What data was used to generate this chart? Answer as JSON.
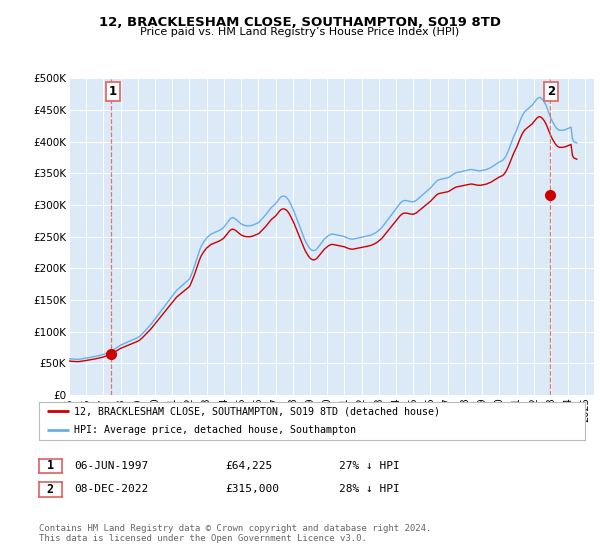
{
  "title": "12, BRACKLESHAM CLOSE, SOUTHAMPTON, SO19 8TD",
  "subtitle": "Price paid vs. HM Land Registry’s House Price Index (HPI)",
  "plot_bg_color": "#dce9f7",
  "ylim": [
    0,
    500000
  ],
  "yticks": [
    0,
    50000,
    100000,
    150000,
    200000,
    250000,
    300000,
    350000,
    400000,
    450000,
    500000
  ],
  "ytick_labels": [
    "£0",
    "£50K",
    "£100K",
    "£150K",
    "£200K",
    "£250K",
    "£300K",
    "£350K",
    "£400K",
    "£450K",
    "£500K"
  ],
  "sale1_date_num": 1997.43,
  "sale1_price": 64225,
  "sale2_date_num": 2022.93,
  "sale2_price": 315000,
  "hpi_color": "#6aaee8",
  "sale_color": "#cc0000",
  "vline_color": "#e06060",
  "legend_entry1": "12, BRACKLESHAM CLOSE, SOUTHAMPTON, SO19 8TD (detached house)",
  "legend_entry2": "HPI: Average price, detached house, Southampton",
  "table_row1": [
    "1",
    "06-JUN-1997",
    "£64,225",
    "27% ↓ HPI"
  ],
  "table_row2": [
    "2",
    "08-DEC-2022",
    "£315,000",
    "28% ↓ HPI"
  ],
  "footer": "Contains HM Land Registry data © Crown copyright and database right 2024.\nThis data is licensed under the Open Government Licence v3.0.",
  "hpi_data": [
    [
      1995.0,
      57000
    ],
    [
      1995.083,
      56800
    ],
    [
      1995.167,
      56500
    ],
    [
      1995.25,
      56300
    ],
    [
      1995.333,
      56200
    ],
    [
      1995.417,
      56100
    ],
    [
      1995.5,
      56000
    ],
    [
      1995.583,
      56200
    ],
    [
      1995.667,
      56500
    ],
    [
      1995.75,
      56800
    ],
    [
      1995.833,
      57200
    ],
    [
      1995.917,
      57600
    ],
    [
      1996.0,
      58000
    ],
    [
      1996.083,
      58400
    ],
    [
      1996.167,
      58800
    ],
    [
      1996.25,
      59200
    ],
    [
      1996.333,
      59600
    ],
    [
      1996.417,
      60000
    ],
    [
      1996.5,
      60500
    ],
    [
      1996.583,
      61000
    ],
    [
      1996.667,
      61500
    ],
    [
      1996.75,
      62000
    ],
    [
      1996.833,
      62500
    ],
    [
      1996.917,
      63200
    ],
    [
      1997.0,
      64000
    ],
    [
      1997.083,
      64800
    ],
    [
      1997.167,
      65600
    ],
    [
      1997.25,
      66500
    ],
    [
      1997.333,
      67500
    ],
    [
      1997.417,
      68500
    ],
    [
      1997.5,
      69500
    ],
    [
      1997.583,
      71000
    ],
    [
      1997.667,
      72500
    ],
    [
      1997.75,
      74000
    ],
    [
      1997.833,
      75500
    ],
    [
      1997.917,
      77000
    ],
    [
      1998.0,
      78500
    ],
    [
      1998.083,
      79500
    ],
    [
      1998.167,
      80500
    ],
    [
      1998.25,
      81500
    ],
    [
      1998.333,
      82500
    ],
    [
      1998.417,
      83500
    ],
    [
      1998.5,
      84500
    ],
    [
      1998.583,
      85500
    ],
    [
      1998.667,
      86500
    ],
    [
      1998.75,
      87500
    ],
    [
      1998.833,
      88500
    ],
    [
      1998.917,
      89500
    ],
    [
      1999.0,
      90500
    ],
    [
      1999.083,
      92000
    ],
    [
      1999.167,
      94000
    ],
    [
      1999.25,
      96000
    ],
    [
      1999.333,
      98500
    ],
    [
      1999.417,
      101000
    ],
    [
      1999.5,
      103500
    ],
    [
      1999.583,
      106000
    ],
    [
      1999.667,
      108500
    ],
    [
      1999.75,
      111000
    ],
    [
      1999.833,
      114000
    ],
    [
      1999.917,
      117000
    ],
    [
      2000.0,
      120000
    ],
    [
      2000.083,
      123000
    ],
    [
      2000.167,
      126000
    ],
    [
      2000.25,
      129000
    ],
    [
      2000.333,
      132000
    ],
    [
      2000.417,
      135000
    ],
    [
      2000.5,
      138000
    ],
    [
      2000.583,
      141000
    ],
    [
      2000.667,
      144000
    ],
    [
      2000.75,
      147000
    ],
    [
      2000.833,
      150000
    ],
    [
      2000.917,
      153000
    ],
    [
      2001.0,
      156000
    ],
    [
      2001.083,
      159000
    ],
    [
      2001.167,
      162000
    ],
    [
      2001.25,
      165000
    ],
    [
      2001.333,
      167000
    ],
    [
      2001.417,
      169000
    ],
    [
      2001.5,
      171000
    ],
    [
      2001.583,
      173000
    ],
    [
      2001.667,
      175000
    ],
    [
      2001.75,
      177000
    ],
    [
      2001.833,
      179000
    ],
    [
      2001.917,
      181000
    ],
    [
      2002.0,
      183000
    ],
    [
      2002.083,
      188000
    ],
    [
      2002.167,
      194000
    ],
    [
      2002.25,
      200000
    ],
    [
      2002.333,
      207000
    ],
    [
      2002.417,
      214000
    ],
    [
      2002.5,
      221000
    ],
    [
      2002.583,
      228000
    ],
    [
      2002.667,
      234000
    ],
    [
      2002.75,
      238000
    ],
    [
      2002.833,
      242000
    ],
    [
      2002.917,
      245000
    ],
    [
      2003.0,
      248000
    ],
    [
      2003.083,
      250000
    ],
    [
      2003.167,
      252000
    ],
    [
      2003.25,
      254000
    ],
    [
      2003.333,
      255000
    ],
    [
      2003.417,
      256000
    ],
    [
      2003.5,
      257000
    ],
    [
      2003.583,
      258000
    ],
    [
      2003.667,
      259000
    ],
    [
      2003.75,
      260000
    ],
    [
      2003.833,
      261500
    ],
    [
      2003.917,
      263000
    ],
    [
      2004.0,
      265000
    ],
    [
      2004.083,
      268000
    ],
    [
      2004.167,
      271000
    ],
    [
      2004.25,
      274000
    ],
    [
      2004.333,
      277000
    ],
    [
      2004.417,
      279000
    ],
    [
      2004.5,
      280000
    ],
    [
      2004.583,
      279000
    ],
    [
      2004.667,
      278000
    ],
    [
      2004.75,
      276000
    ],
    [
      2004.833,
      274000
    ],
    [
      2004.917,
      272000
    ],
    [
      2005.0,
      270000
    ],
    [
      2005.083,
      269000
    ],
    [
      2005.167,
      268000
    ],
    [
      2005.25,
      267500
    ],
    [
      2005.333,
      267000
    ],
    [
      2005.417,
      267000
    ],
    [
      2005.5,
      267000
    ],
    [
      2005.583,
      267500
    ],
    [
      2005.667,
      268000
    ],
    [
      2005.75,
      269000
    ],
    [
      2005.833,
      270000
    ],
    [
      2005.917,
      271000
    ],
    [
      2006.0,
      272000
    ],
    [
      2006.083,
      274000
    ],
    [
      2006.167,
      276500
    ],
    [
      2006.25,
      279000
    ],
    [
      2006.333,
      281500
    ],
    [
      2006.417,
      284000
    ],
    [
      2006.5,
      287000
    ],
    [
      2006.583,
      290000
    ],
    [
      2006.667,
      293000
    ],
    [
      2006.75,
      296000
    ],
    [
      2006.833,
      298000
    ],
    [
      2006.917,
      300000
    ],
    [
      2007.0,
      302000
    ],
    [
      2007.083,
      305000
    ],
    [
      2007.167,
      308000
    ],
    [
      2007.25,
      311000
    ],
    [
      2007.333,
      313000
    ],
    [
      2007.417,
      314000
    ],
    [
      2007.5,
      314000
    ],
    [
      2007.583,
      313000
    ],
    [
      2007.667,
      311000
    ],
    [
      2007.75,
      308000
    ],
    [
      2007.833,
      304000
    ],
    [
      2007.917,
      299000
    ],
    [
      2008.0,
      294000
    ],
    [
      2008.083,
      289000
    ],
    [
      2008.167,
      283000
    ],
    [
      2008.25,
      277000
    ],
    [
      2008.333,
      271000
    ],
    [
      2008.417,
      265000
    ],
    [
      2008.5,
      259000
    ],
    [
      2008.583,
      253000
    ],
    [
      2008.667,
      247000
    ],
    [
      2008.75,
      242000
    ],
    [
      2008.833,
      238000
    ],
    [
      2008.917,
      234000
    ],
    [
      2009.0,
      231000
    ],
    [
      2009.083,
      229000
    ],
    [
      2009.167,
      228000
    ],
    [
      2009.25,
      228000
    ],
    [
      2009.333,
      229000
    ],
    [
      2009.417,
      231000
    ],
    [
      2009.5,
      234000
    ],
    [
      2009.583,
      237000
    ],
    [
      2009.667,
      240000
    ],
    [
      2009.75,
      243000
    ],
    [
      2009.833,
      246000
    ],
    [
      2009.917,
      248000
    ],
    [
      2010.0,
      250000
    ],
    [
      2010.083,
      252000
    ],
    [
      2010.167,
      253000
    ],
    [
      2010.25,
      254000
    ],
    [
      2010.333,
      254000
    ],
    [
      2010.417,
      253500
    ],
    [
      2010.5,
      253000
    ],
    [
      2010.583,
      252500
    ],
    [
      2010.667,
      252000
    ],
    [
      2010.75,
      251500
    ],
    [
      2010.833,
      251000
    ],
    [
      2010.917,
      250500
    ],
    [
      2011.0,
      250000
    ],
    [
      2011.083,
      249000
    ],
    [
      2011.167,
      248000
    ],
    [
      2011.25,
      247000
    ],
    [
      2011.333,
      246500
    ],
    [
      2011.417,
      246000
    ],
    [
      2011.5,
      246000
    ],
    [
      2011.583,
      246500
    ],
    [
      2011.667,
      247000
    ],
    [
      2011.75,
      247500
    ],
    [
      2011.833,
      248000
    ],
    [
      2011.917,
      248500
    ],
    [
      2012.0,
      249000
    ],
    [
      2012.083,
      249500
    ],
    [
      2012.167,
      250000
    ],
    [
      2012.25,
      250500
    ],
    [
      2012.333,
      251000
    ],
    [
      2012.417,
      251500
    ],
    [
      2012.5,
      252000
    ],
    [
      2012.583,
      253000
    ],
    [
      2012.667,
      254000
    ],
    [
      2012.75,
      255000
    ],
    [
      2012.833,
      256500
    ],
    [
      2012.917,
      258000
    ],
    [
      2013.0,
      260000
    ],
    [
      2013.083,
      262000
    ],
    [
      2013.167,
      264000
    ],
    [
      2013.25,
      267000
    ],
    [
      2013.333,
      270000
    ],
    [
      2013.417,
      273000
    ],
    [
      2013.5,
      276000
    ],
    [
      2013.583,
      279000
    ],
    [
      2013.667,
      282000
    ],
    [
      2013.75,
      285000
    ],
    [
      2013.833,
      288000
    ],
    [
      2013.917,
      291000
    ],
    [
      2014.0,
      294000
    ],
    [
      2014.083,
      297000
    ],
    [
      2014.167,
      300000
    ],
    [
      2014.25,
      303000
    ],
    [
      2014.333,
      305000
    ],
    [
      2014.417,
      306500
    ],
    [
      2014.5,
      307000
    ],
    [
      2014.583,
      307000
    ],
    [
      2014.667,
      306500
    ],
    [
      2014.75,
      306000
    ],
    [
      2014.833,
      305500
    ],
    [
      2014.917,
      305000
    ],
    [
      2015.0,
      305000
    ],
    [
      2015.083,
      306000
    ],
    [
      2015.167,
      307000
    ],
    [
      2015.25,
      309000
    ],
    [
      2015.333,
      311000
    ],
    [
      2015.417,
      313000
    ],
    [
      2015.5,
      315000
    ],
    [
      2015.583,
      317000
    ],
    [
      2015.667,
      319000
    ],
    [
      2015.75,
      321000
    ],
    [
      2015.833,
      323000
    ],
    [
      2015.917,
      325000
    ],
    [
      2016.0,
      327000
    ],
    [
      2016.083,
      329500
    ],
    [
      2016.167,
      332000
    ],
    [
      2016.25,
      334500
    ],
    [
      2016.333,
      337000
    ],
    [
      2016.417,
      339000
    ],
    [
      2016.5,
      340000
    ],
    [
      2016.583,
      340500
    ],
    [
      2016.667,
      341000
    ],
    [
      2016.75,
      341500
    ],
    [
      2016.833,
      342000
    ],
    [
      2016.917,
      342500
    ],
    [
      2017.0,
      343000
    ],
    [
      2017.083,
      344000
    ],
    [
      2017.167,
      345500
    ],
    [
      2017.25,
      347000
    ],
    [
      2017.333,
      348500
    ],
    [
      2017.417,
      350000
    ],
    [
      2017.5,
      351000
    ],
    [
      2017.583,
      351500
    ],
    [
      2017.667,
      352000
    ],
    [
      2017.75,
      352500
    ],
    [
      2017.833,
      353000
    ],
    [
      2017.917,
      353500
    ],
    [
      2018.0,
      354000
    ],
    [
      2018.083,
      354500
    ],
    [
      2018.167,
      355000
    ],
    [
      2018.25,
      355500
    ],
    [
      2018.333,
      356000
    ],
    [
      2018.417,
      356000
    ],
    [
      2018.5,
      355500
    ],
    [
      2018.583,
      355000
    ],
    [
      2018.667,
      354500
    ],
    [
      2018.75,
      354000
    ],
    [
      2018.833,
      354000
    ],
    [
      2018.917,
      354000
    ],
    [
      2019.0,
      354500
    ],
    [
      2019.083,
      355000
    ],
    [
      2019.167,
      355500
    ],
    [
      2019.25,
      356000
    ],
    [
      2019.333,
      357000
    ],
    [
      2019.417,
      358000
    ],
    [
      2019.5,
      359000
    ],
    [
      2019.583,
      360500
    ],
    [
      2019.667,
      362000
    ],
    [
      2019.75,
      363500
    ],
    [
      2019.833,
      365000
    ],
    [
      2019.917,
      366500
    ],
    [
      2020.0,
      368000
    ],
    [
      2020.083,
      369000
    ],
    [
      2020.167,
      370000
    ],
    [
      2020.25,
      372000
    ],
    [
      2020.333,
      375000
    ],
    [
      2020.417,
      379000
    ],
    [
      2020.5,
      384000
    ],
    [
      2020.583,
      390000
    ],
    [
      2020.667,
      396000
    ],
    [
      2020.75,
      402000
    ],
    [
      2020.833,
      408000
    ],
    [
      2020.917,
      413000
    ],
    [
      2021.0,
      418000
    ],
    [
      2021.083,
      424000
    ],
    [
      2021.167,
      430000
    ],
    [
      2021.25,
      436000
    ],
    [
      2021.333,
      441000
    ],
    [
      2021.417,
      445000
    ],
    [
      2021.5,
      448000
    ],
    [
      2021.583,
      450000
    ],
    [
      2021.667,
      452000
    ],
    [
      2021.75,
      454000
    ],
    [
      2021.833,
      456000
    ],
    [
      2021.917,
      458000
    ],
    [
      2022.0,
      461000
    ],
    [
      2022.083,
      464000
    ],
    [
      2022.167,
      467000
    ],
    [
      2022.25,
      469000
    ],
    [
      2022.333,
      470000
    ],
    [
      2022.417,
      469000
    ],
    [
      2022.5,
      467000
    ],
    [
      2022.583,
      464000
    ],
    [
      2022.667,
      460000
    ],
    [
      2022.75,
      455000
    ],
    [
      2022.833,
      449000
    ],
    [
      2022.917,
      443000
    ],
    [
      2023.0,
      437000
    ],
    [
      2023.083,
      432000
    ],
    [
      2023.167,
      428000
    ],
    [
      2023.25,
      424000
    ],
    [
      2023.333,
      421000
    ],
    [
      2023.417,
      419000
    ],
    [
      2023.5,
      418000
    ],
    [
      2023.583,
      418000
    ],
    [
      2023.667,
      418000
    ],
    [
      2023.75,
      418500
    ],
    [
      2023.833,
      419000
    ],
    [
      2023.917,
      420000
    ],
    [
      2024.0,
      421000
    ],
    [
      2024.083,
      422000
    ],
    [
      2024.167,
      423000
    ],
    [
      2024.25,
      404000
    ],
    [
      2024.333,
      400000
    ],
    [
      2024.5,
      398000
    ]
  ],
  "sale_data": [
    [
      1997.43,
      64225
    ],
    [
      2022.93,
      315000
    ]
  ],
  "xmin": 1995.0,
  "xmax": 2025.5,
  "xticks": [
    1995,
    1996,
    1997,
    1998,
    1999,
    2000,
    2001,
    2002,
    2003,
    2004,
    2005,
    2006,
    2007,
    2008,
    2009,
    2010,
    2011,
    2012,
    2013,
    2014,
    2015,
    2016,
    2017,
    2018,
    2019,
    2020,
    2021,
    2022,
    2023,
    2024,
    2025
  ]
}
